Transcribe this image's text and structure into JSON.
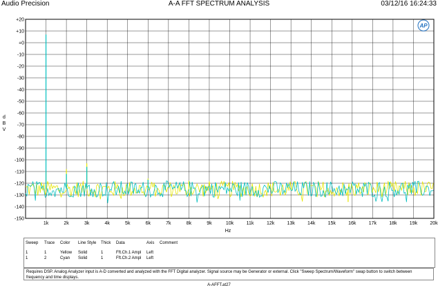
{
  "header": {
    "left": "Audio Precision",
    "center": "A-A FFT SPECTRUM ANALYSIS",
    "right": "03/12/16 16:24:33",
    "logo_text": "AP"
  },
  "chart_data": {
    "type": "line",
    "title": "A-A FFT SPECTRUM ANALYSIS",
    "xlabel": "Hz",
    "ylabel": "d B V",
    "xlim": [
      0,
      20000
    ],
    "ylim": [
      -150,
      20
    ],
    "x_ticks": [
      1000,
      2000,
      3000,
      4000,
      5000,
      6000,
      7000,
      8000,
      9000,
      10000,
      11000,
      12000,
      13000,
      14000,
      15000,
      16000,
      17000,
      18000,
      19000,
      20000
    ],
    "x_tick_labels": [
      "1k",
      "2k",
      "3k",
      "4k",
      "5k",
      "6k",
      "7k",
      "8k",
      "9k",
      "10k",
      "11k",
      "12k",
      "13k",
      "14k",
      "15k",
      "16k",
      "17k",
      "18k",
      "19k",
      "20k"
    ],
    "y_ticks": [
      20,
      10,
      0,
      -10,
      -20,
      -30,
      -40,
      -50,
      -60,
      -70,
      -80,
      -90,
      -100,
      -110,
      -120,
      -130,
      -140,
      -150
    ],
    "y_tick_labels": [
      "+20",
      "+10",
      "+0",
      "-10",
      "-20",
      "-30",
      "-40",
      "-50",
      "-60",
      "-70",
      "-80",
      "-90",
      "-100",
      "-110",
      "-120",
      "-130",
      "-140",
      "-150"
    ],
    "grid": true,
    "noise_floor_db": -125,
    "series": [
      {
        "sweep": "1",
        "trace": "1",
        "color": "Yellow",
        "line_style": "Solid",
        "thick": "1",
        "data": "Fft.Ch.1 Ampl",
        "axis": "Left",
        "color_hex": "#e6e600",
        "peaks": [
          [
            1000,
            -110
          ],
          [
            2000,
            -108
          ],
          [
            3000,
            -103
          ],
          [
            6000,
            -116
          ],
          [
            8000,
            -118
          ],
          [
            15800,
            -136
          ]
        ]
      },
      {
        "sweep": "1",
        "trace": "2",
        "color": "Cyan",
        "line_style": "Solid",
        "thick": "1",
        "data": "Fft.Ch.2 Ampl",
        "axis": "Left",
        "color_hex": "#00bfbf",
        "peaks": [
          [
            1000,
            7
          ],
          [
            2000,
            -112
          ],
          [
            3000,
            -106
          ],
          [
            6000,
            -117
          ]
        ]
      }
    ]
  },
  "legend": {
    "headers": [
      "Sweep",
      "Trace",
      "Color",
      "Line Style",
      "Thick",
      "Data",
      "Axis",
      "Comment"
    ],
    "rows": [
      [
        "1",
        "1",
        "Yellow",
        "Solid",
        "1",
        "Fft.Ch.1 Ampl",
        "Left",
        ""
      ],
      [
        "1",
        "2",
        "Cyan",
        "Solid",
        "1",
        "Fft.Ch.2 Ampl",
        "Left",
        ""
      ]
    ]
  },
  "note": "Requires DSP. Analog Analyzer input is A-D converted and analyzed with the FFT Digital analyzer. Signal source may be Generator or external. Click \"Sweep Spectrum/Waveform\" swap button to switch between frequency and time displays.",
  "filename": "A-AFFT.at27"
}
